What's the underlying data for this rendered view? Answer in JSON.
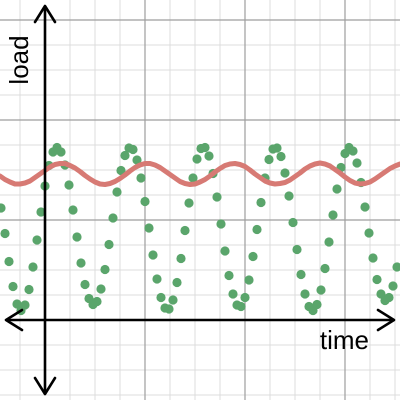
{
  "chart_data": {
    "type": "line",
    "title": "",
    "xlabel": "time",
    "ylabel": "load",
    "xlim": [
      -0.9,
      7.1
    ],
    "ylim": [
      -1.6,
      6.4
    ],
    "grid": true,
    "legend": "none",
    "series": [
      {
        "style": "dotted",
        "color": "#5aa56b",
        "x": [
          -0.88,
          -0.8,
          -0.72,
          -0.64,
          -0.56,
          -0.48,
          -0.4,
          -0.32,
          -0.24,
          -0.16,
          -0.08,
          0.0,
          0.08,
          0.16,
          0.24,
          0.32,
          0.4,
          0.48,
          0.56,
          0.64,
          0.72,
          0.8,
          0.88,
          0.96,
          1.04,
          1.12,
          1.2,
          1.28,
          1.36,
          1.44,
          1.52,
          1.6,
          1.68,
          1.76,
          1.84,
          1.92,
          2.0,
          2.08,
          2.16,
          2.24,
          2.32,
          2.4,
          2.48,
          2.56,
          2.64,
          2.72,
          2.8,
          2.88,
          2.96,
          3.04,
          3.12,
          3.2,
          3.28,
          3.36,
          3.44,
          3.52,
          3.6,
          3.68,
          3.76,
          3.84,
          3.92,
          4.0,
          4.08,
          4.16,
          4.24,
          4.32,
          4.4,
          4.48,
          4.56,
          4.64,
          4.72,
          4.8,
          4.88,
          4.96,
          5.04,
          5.12,
          5.2,
          5.28,
          5.36,
          5.44,
          5.52,
          5.6,
          5.68,
          5.76,
          5.84,
          5.92,
          6.0,
          6.08,
          6.16,
          6.24,
          6.32,
          6.4,
          6.48,
          6.56,
          6.64,
          6.72,
          6.8,
          6.88,
          6.96,
          7.04
        ],
        "y": [
          2.24,
          1.73,
          1.17,
          0.67,
          0.32,
          0.19,
          0.3,
          0.61,
          1.06,
          1.6,
          2.16,
          2.68,
          3.09,
          3.36,
          3.45,
          3.36,
          3.1,
          2.7,
          2.2,
          1.66,
          1.14,
          0.71,
          0.43,
          0.31,
          0.37,
          0.62,
          1.01,
          1.51,
          2.04,
          2.56,
          2.99,
          3.29,
          3.44,
          3.41,
          3.2,
          2.84,
          2.37,
          1.84,
          1.3,
          0.82,
          0.45,
          0.24,
          0.22,
          0.4,
          0.75,
          1.23,
          1.79,
          2.34,
          2.84,
          3.22,
          3.43,
          3.45,
          3.28,
          2.93,
          2.46,
          1.92,
          1.38,
          0.89,
          0.52,
          0.3,
          0.27,
          0.45,
          0.8,
          1.27,
          1.81,
          2.35,
          2.84,
          3.21,
          3.42,
          3.44,
          3.27,
          2.94,
          2.48,
          1.95,
          1.41,
          0.91,
          0.52,
          0.27,
          0.19,
          0.31,
          0.6,
          1.03,
          1.56,
          2.1,
          2.62,
          3.05,
          3.33,
          3.45,
          3.38,
          3.14,
          2.75,
          2.26,
          1.74,
          1.24,
          0.81,
          0.52,
          0.39,
          0.45,
          0.68,
          1.06
        ]
      },
      {
        "style": "solid",
        "color": "#d77a74",
        "x": [
          -0.9,
          -0.8,
          -0.7,
          -0.6,
          -0.5,
          -0.4,
          -0.3,
          -0.2,
          -0.1,
          0.0,
          0.1,
          0.2,
          0.3,
          0.4,
          0.5,
          0.6,
          0.7,
          0.8,
          0.9,
          1.0,
          1.1,
          1.2,
          1.3,
          1.4,
          1.5,
          1.6,
          1.7,
          1.8,
          1.9,
          2.0,
          2.1,
          2.2,
          2.3,
          2.4,
          2.5,
          2.6,
          2.7,
          2.8,
          2.9,
          3.0,
          3.1,
          3.2,
          3.3,
          3.4,
          3.5,
          3.6,
          3.7,
          3.8,
          3.9,
          4.0,
          4.1,
          4.2,
          4.3,
          4.4,
          4.5,
          4.6,
          4.7,
          4.8,
          4.9,
          5.0,
          5.1,
          5.2,
          5.3,
          5.4,
          5.5,
          5.6,
          5.7,
          5.8,
          5.9,
          6.0,
          6.1,
          6.2,
          6.3,
          6.4,
          6.5,
          6.6,
          6.7,
          6.8,
          6.9,
          7.0,
          7.1
        ],
        "y": [
          2.88,
          2.81,
          2.76,
          2.72,
          2.72,
          2.74,
          2.78,
          2.85,
          2.92,
          2.99,
          3.06,
          3.11,
          3.13,
          3.13,
          3.09,
          3.04,
          2.97,
          2.89,
          2.82,
          2.76,
          2.72,
          2.71,
          2.73,
          2.77,
          2.83,
          2.9,
          2.98,
          3.05,
          3.1,
          3.13,
          3.13,
          3.1,
          3.05,
          2.98,
          2.91,
          2.84,
          2.77,
          2.73,
          2.71,
          2.72,
          2.76,
          2.81,
          2.88,
          2.96,
          3.03,
          3.09,
          3.12,
          3.13,
          3.11,
          3.07,
          3.0,
          2.92,
          2.85,
          2.78,
          2.74,
          2.72,
          2.73,
          2.75,
          2.8,
          2.87,
          2.94,
          3.02,
          3.08,
          3.12,
          3.14,
          3.12,
          3.08,
          3.01,
          2.94,
          2.86,
          2.79,
          2.74,
          2.72,
          2.73,
          2.76,
          2.82,
          2.89,
          2.96,
          3.03,
          3.08,
          3.12
        ]
      }
    ]
  }
}
